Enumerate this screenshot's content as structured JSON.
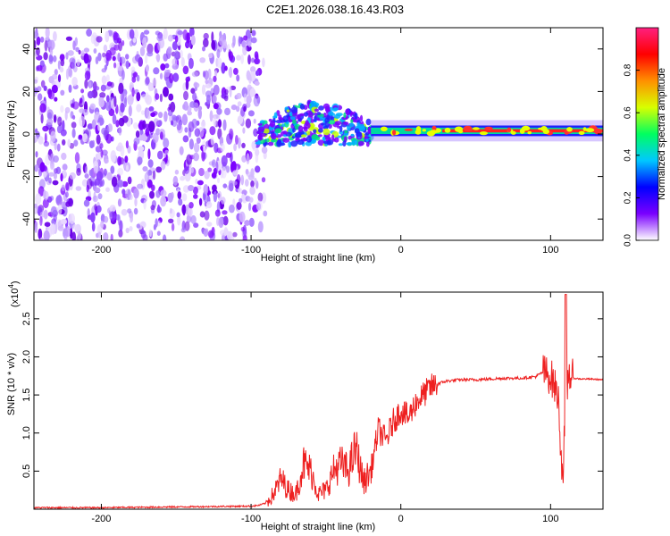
{
  "title": "C2E1.2026.038.16.43.R03",
  "chart_data": [
    {
      "type": "heatmap",
      "name": "spectrogram",
      "xlabel": "Height of straight line (km)",
      "ylabel": "Frequency (Hz)",
      "xlim": [
        -245,
        135
      ],
      "ylim": [
        -50,
        50
      ],
      "xticks": [
        -200,
        -100,
        0,
        100
      ],
      "yticks": [
        -40,
        -20,
        0,
        20,
        40
      ],
      "colorbar": {
        "label": "Normalized spectral amplitude",
        "range": [
          0,
          1
        ],
        "ticks": [
          0.0,
          0.2,
          0.4,
          0.6,
          0.8
        ],
        "tick_labels": [
          "0.0",
          "0.2",
          "0.4",
          "0.6",
          "0.8"
        ],
        "colors": [
          "#ffffff",
          "#7a00ff",
          "#0000ff",
          "#00c8ff",
          "#00ff60",
          "#d8ff00",
          "#ff9000",
          "#ff0000",
          "#ff2080"
        ]
      },
      "regions": [
        {
          "label": "noise",
          "x_range": [
            -245,
            -95
          ],
          "f_range": [
            -50,
            48
          ],
          "amplitude": 0.1
        },
        {
          "label": "onset",
          "x_range": [
            -95,
            -20
          ],
          "f_range": [
            -10,
            10
          ],
          "amplitude": 0.4
        },
        {
          "label": "carrier",
          "x_range": [
            -20,
            135
          ],
          "f_center": 1.5,
          "f_halfwidth": 2.5,
          "amplitude": 0.9
        }
      ]
    },
    {
      "type": "line",
      "name": "snr",
      "xlabel": "Height of straight line (km)",
      "ylabel": "SNR (10 * v/v)",
      "scale_label": "(x10",
      "scale_exp": "4",
      "scale_close": ")",
      "xlim": [
        -245,
        135
      ],
      "ylim": [
        0,
        2.85
      ],
      "xticks": [
        -200,
        -100,
        0,
        100
      ],
      "yticks": [
        0.5,
        1.0,
        1.5,
        2.0,
        2.5
      ],
      "ytick_labels": [
        "0.5",
        "1.0",
        "1.5",
        "2.0",
        "2.5"
      ],
      "color": "#ee2020",
      "series": [
        {
          "name": "SNR",
          "x": [
            -245,
            -200,
            -150,
            -100,
            -95,
            -90,
            -85,
            -80,
            -75,
            -70,
            -65,
            -60,
            -55,
            -50,
            -45,
            -40,
            -35,
            -30,
            -25,
            -20,
            -15,
            -10,
            -5,
            0,
            5,
            10,
            15,
            20,
            25,
            30,
            40,
            50,
            60,
            70,
            80,
            90,
            95,
            100,
            105,
            108,
            110,
            112,
            115,
            120,
            125,
            135
          ],
          "y": [
            0.02,
            0.02,
            0.03,
            0.04,
            0.05,
            0.08,
            0.2,
            0.4,
            0.25,
            0.2,
            0.6,
            0.5,
            0.2,
            0.25,
            0.5,
            0.6,
            0.5,
            0.8,
            0.35,
            0.5,
            1.05,
            0.9,
            1.15,
            1.3,
            1.2,
            1.4,
            1.5,
            1.6,
            1.65,
            1.68,
            1.7,
            1.7,
            1.71,
            1.72,
            1.72,
            1.74,
            1.8,
            1.75,
            1.5,
            0.4,
            1.3,
            1.8,
            1.72,
            1.71,
            1.71,
            1.7
          ]
        }
      ]
    }
  ]
}
